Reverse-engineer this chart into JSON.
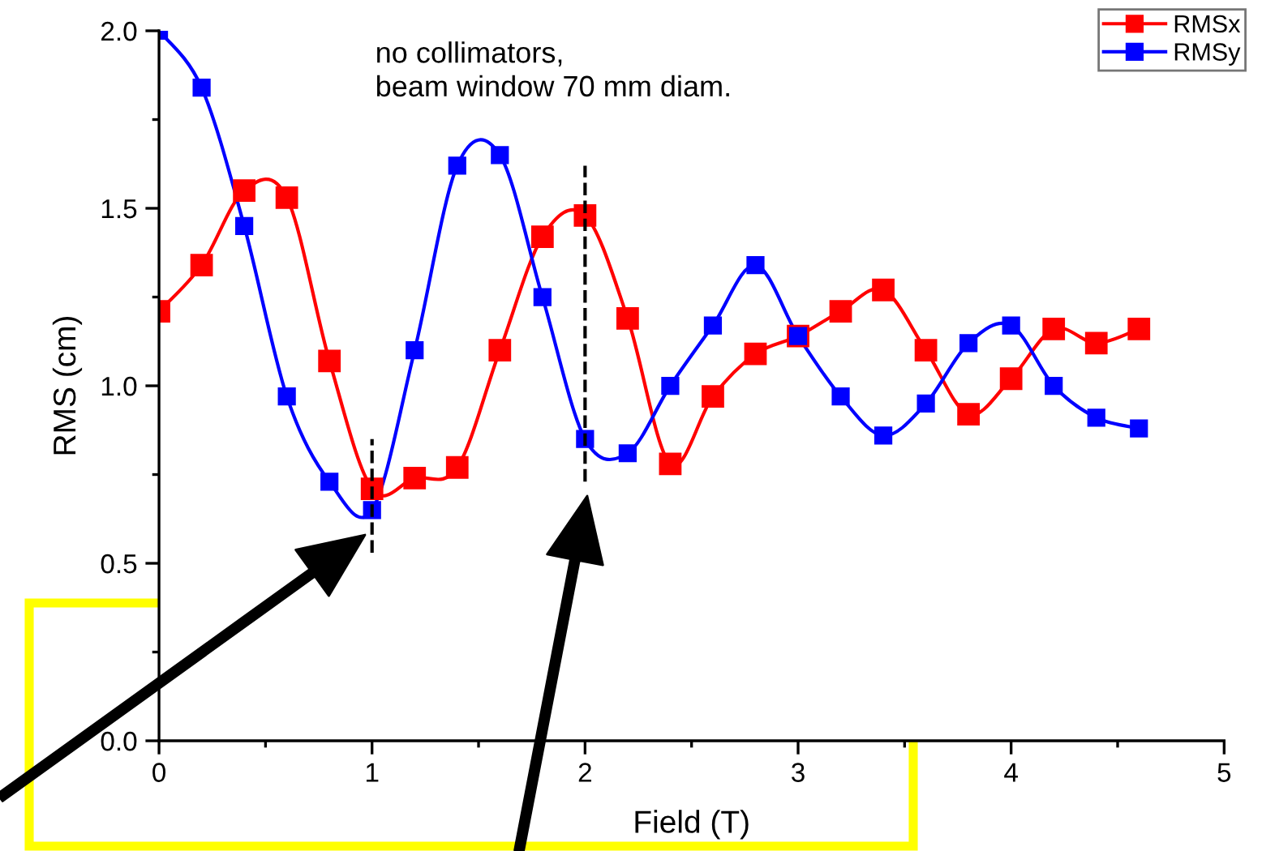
{
  "chart_data": {
    "type": "line",
    "xlabel": "Field (T)",
    "ylabel": "RMS (cm)",
    "annotations": [
      "no collimators,\nbeam window 70 mm diam."
    ],
    "xlim": [
      0,
      5
    ],
    "xticks": [
      0,
      1,
      2,
      3,
      4,
      5
    ],
    "ylim": [
      0.0,
      2.0
    ],
    "yticks": [
      {
        "value": 0,
        "label": "0.0"
      },
      {
        "value": 0.5,
        "label": "0.5"
      },
      {
        "value": 1,
        "label": "1.0"
      },
      {
        "value": 1.5,
        "label": "1.5"
      },
      {
        "value": 2,
        "label": "2.0"
      }
    ],
    "x": [
      0,
      0.2,
      0.4,
      0.6,
      0.8,
      1.0,
      1.2,
      1.4,
      1.6,
      1.8,
      2.0,
      2.2,
      2.4,
      2.6,
      2.8,
      3.0,
      3.2,
      3.4,
      3.6,
      3.8,
      4.0,
      4.2,
      4.4,
      4.6
    ],
    "series": [
      {
        "name": "RMSx",
        "color": "#ff0000",
        "values": [
          1.21,
          1.34,
          1.55,
          1.53,
          1.07,
          0.71,
          0.74,
          0.77,
          1.1,
          1.42,
          1.48,
          1.19,
          0.78,
          0.97,
          1.09,
          1.14,
          1.21,
          1.27,
          1.1,
          0.92,
          1.02,
          1.16,
          1.12,
          1.16
        ]
      },
      {
        "name": "RMSy",
        "color": "#0000ff",
        "values": [
          2.0,
          1.84,
          1.45,
          0.97,
          0.73,
          0.65,
          1.1,
          1.62,
          1.65,
          1.25,
          0.85,
          0.81,
          1.0,
          1.17,
          1.34,
          1.14,
          0.97,
          0.86,
          0.95,
          1.12,
          1.17,
          1.0,
          0.91,
          0.88
        ]
      }
    ],
    "ref_lines": [
      {
        "axis": "x",
        "value": 1,
        "color": "#000000",
        "line_style": "dashed"
      },
      {
        "axis": "x",
        "value": 2,
        "color": "#000000",
        "line_style": "dashed"
      }
    ],
    "marker": "square",
    "line_style": "solid",
    "grid": false,
    "legend": "top right"
  }
}
